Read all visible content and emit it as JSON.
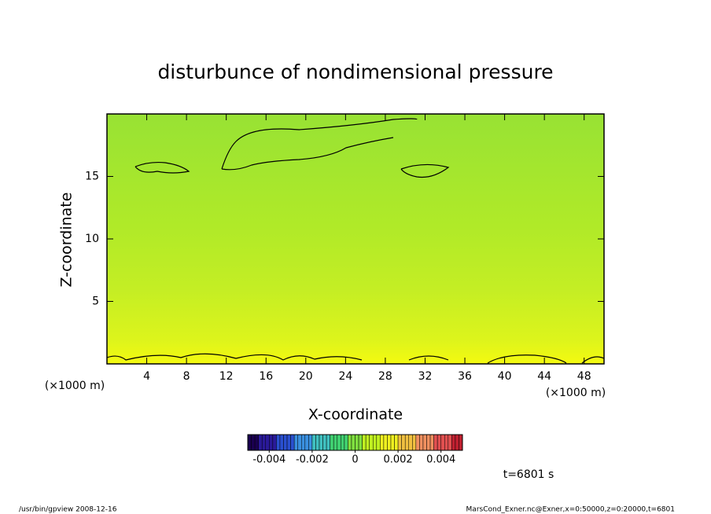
{
  "chart_data": {
    "type": "contour",
    "title": "disturbunce of nondimensional pressure",
    "xlabel": "X-coordinate",
    "ylabel": "Z-coordinate",
    "x_unit": "(×1000 m)",
    "y_unit": "(×1000 m)",
    "xlim": [
      0,
      50
    ],
    "ylim": [
      0,
      20
    ],
    "xticks": [
      4,
      8,
      12,
      16,
      20,
      24,
      28,
      32,
      36,
      40,
      44,
      48
    ],
    "yticks": [
      5,
      10,
      15
    ],
    "colorbar": {
      "lim": [
        -0.005,
        0.005
      ],
      "ticks": [
        -0.004,
        -0.002,
        0,
        0.002,
        0.004
      ],
      "colors": [
        "#1a0050",
        "#2a1a9a",
        "#2a50d0",
        "#3a90e0",
        "#40c0c0",
        "#40d070",
        "#80e040",
        "#c0f020",
        "#f0f020",
        "#f0c040",
        "#f09060",
        "#e05050",
        "#c02030"
      ]
    },
    "time_label": "t=6801 s",
    "footer_left": "/usr/bin/gpview   2008-12-16",
    "footer_right": "MarsCond_Exner.nc@Exner,x=0:50000,z=0:20000,t=6801"
  }
}
